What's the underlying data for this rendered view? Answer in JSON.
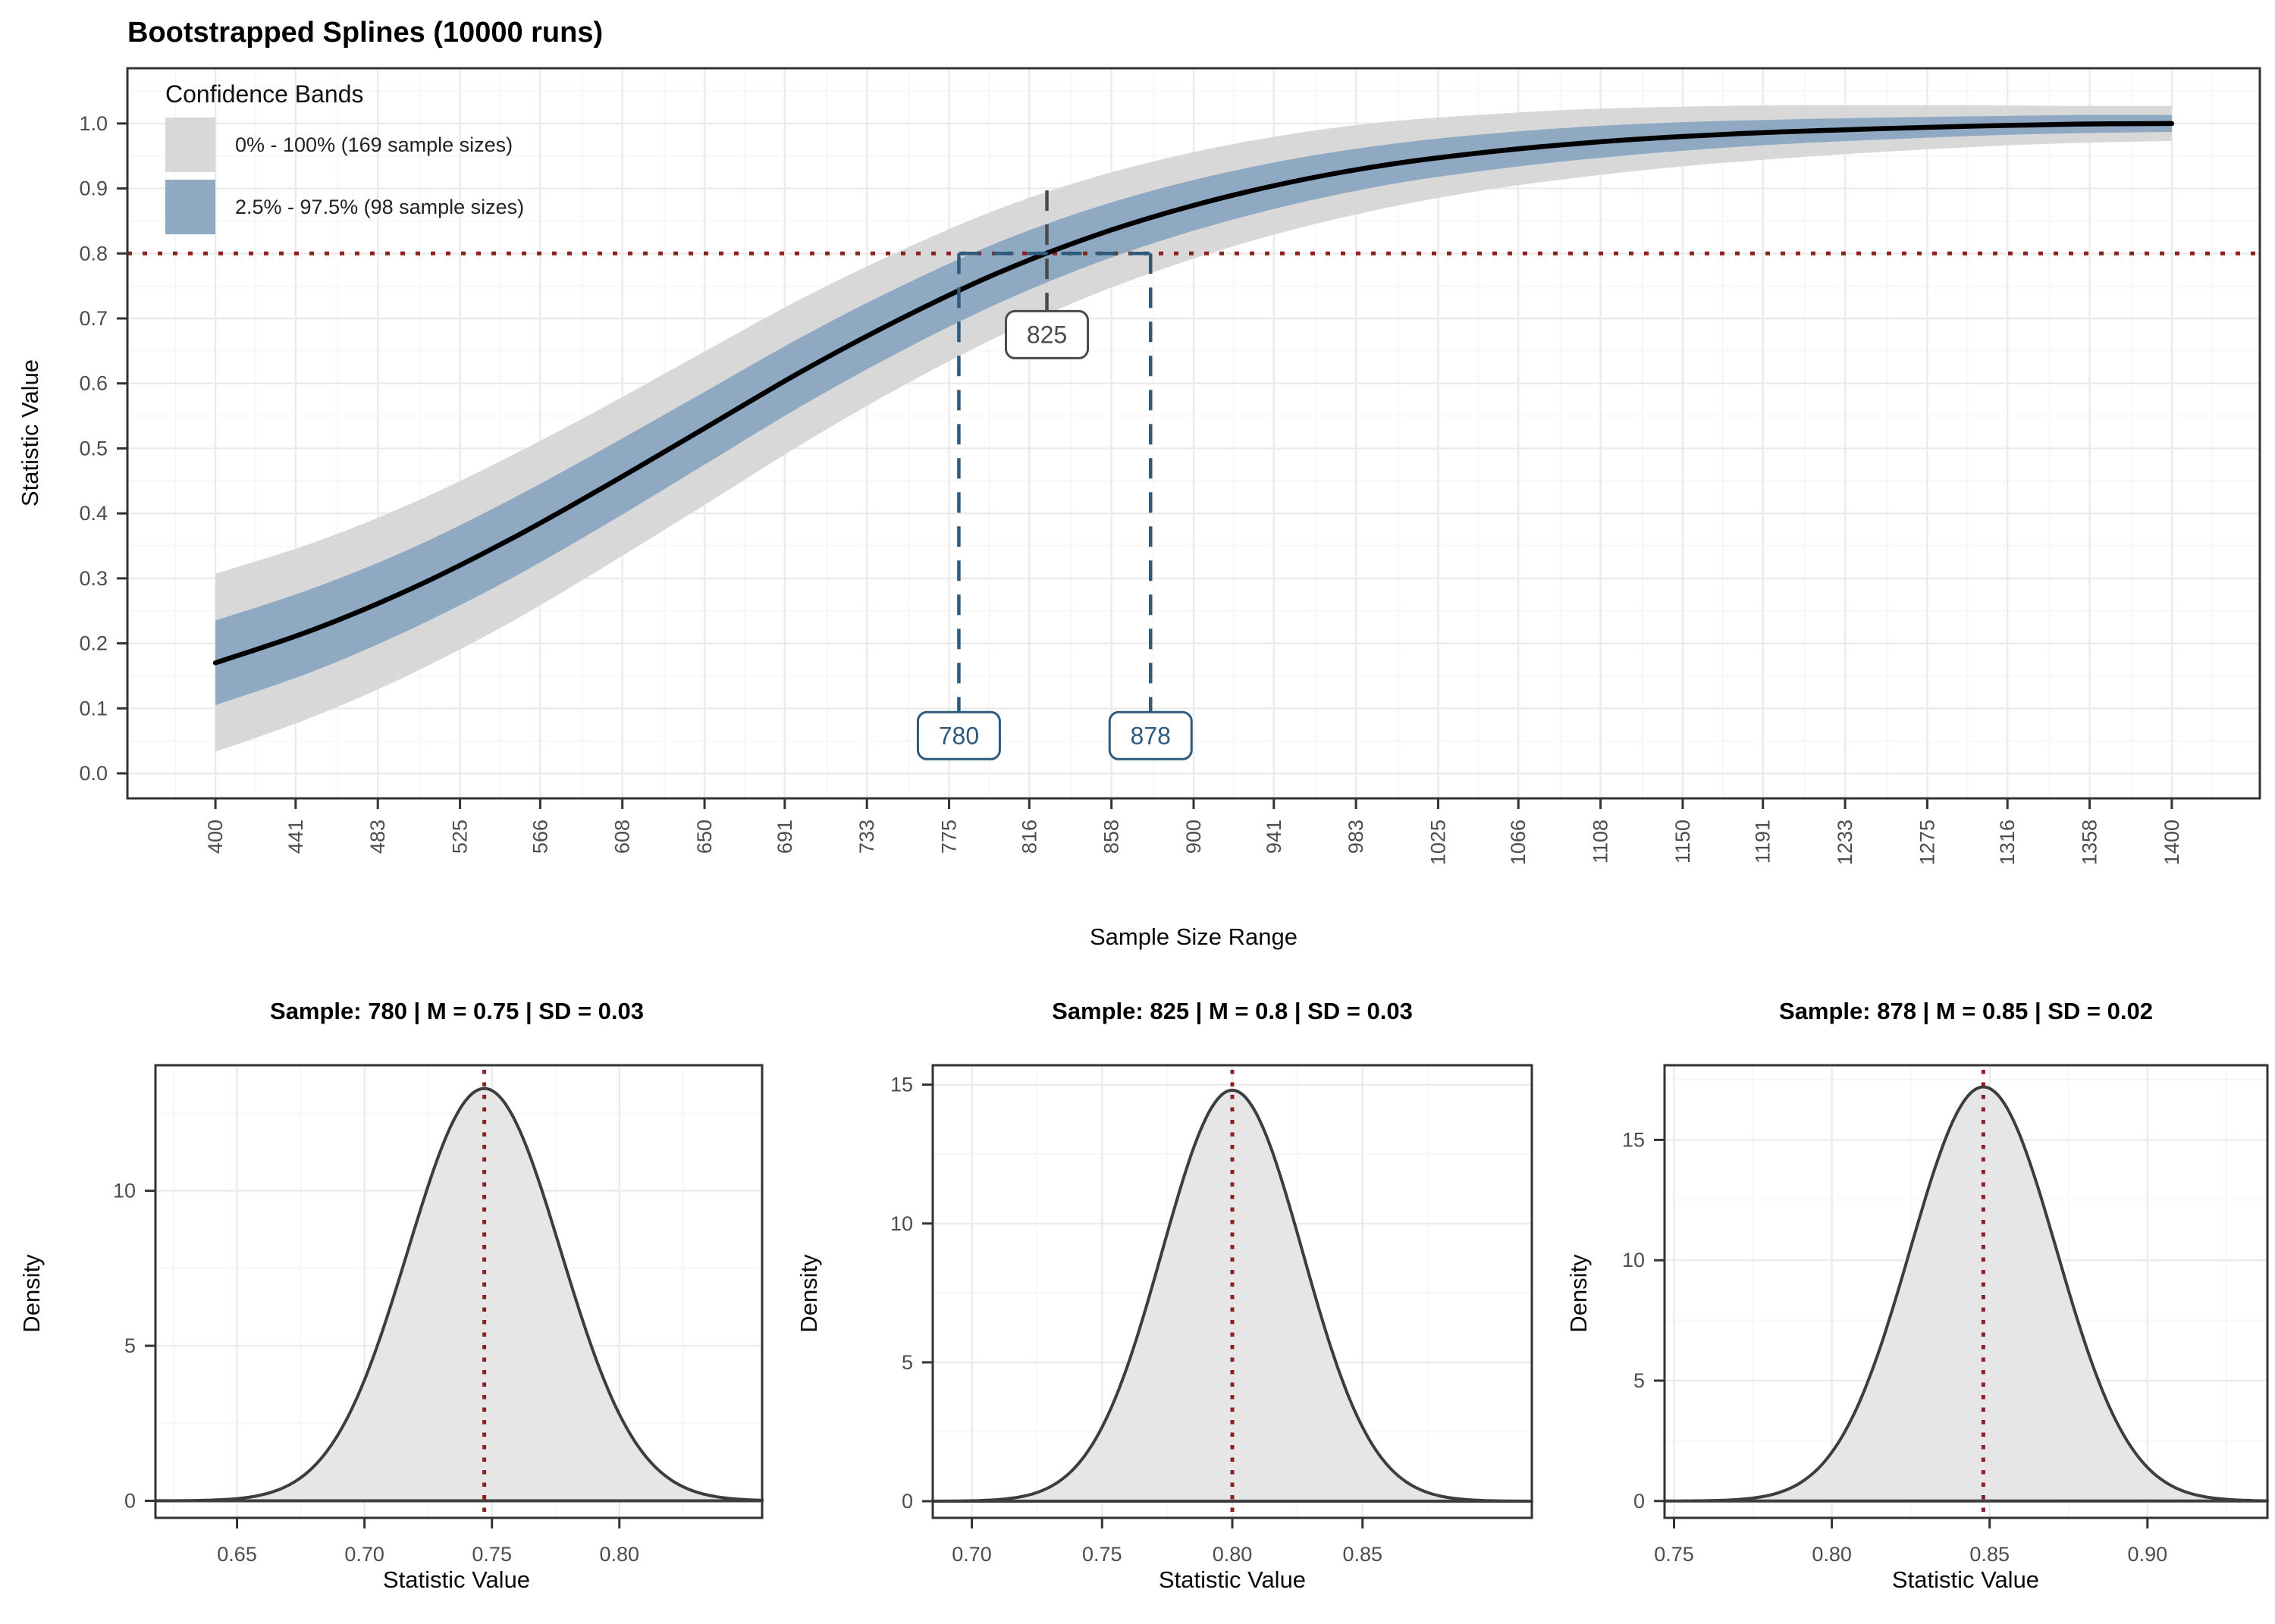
{
  "figure_title": "Bootstrapped Splines (10000 runs)",
  "chart_data": [
    {
      "type": "line",
      "title": "Bootstrapped Splines (10000 runs)",
      "xlabel": "Sample Size Range",
      "ylabel": "Statistic Value",
      "xlim": [
        355,
        1445
      ],
      "ylim": [
        -0.0385,
        1.085
      ],
      "x_ticks": [
        400,
        441,
        483,
        525,
        566,
        608,
        650,
        691,
        733,
        775,
        816,
        858,
        900,
        941,
        983,
        1025,
        1066,
        1108,
        1150,
        1191,
        1233,
        1275,
        1316,
        1358,
        1400
      ],
      "y_ticks": [
        0.0,
        0.1,
        0.2,
        0.3,
        0.4,
        0.5,
        0.6,
        0.7,
        0.8,
        0.9,
        1.0
      ],
      "grid": true,
      "colors": {
        "band_range": "#D8D8D8",
        "band_ci": "#8FA9C3",
        "spline": "#000000",
        "target_line": "#8B2020",
        "ci_annotation": "#2E5A7D",
        "mean_annotation": "#4A4A4A"
      },
      "legend": {
        "position": "top-left-inside",
        "title": "Confidence Bands",
        "items": [
          {
            "label": "0% - 100% (169 sample sizes)",
            "color": "#D8D8D8"
          },
          {
            "label": "2.5% - 97.5% (98 sample sizes)",
            "color": "#8FA9C3"
          }
        ]
      },
      "target_value": 0.8,
      "series": {
        "sample_size": [
          400,
          450,
          500,
          550,
          600,
          650,
          700,
          750,
          800,
          850,
          900,
          950,
          1000,
          1050,
          1100,
          1150,
          1200,
          1250,
          1300,
          1350,
          1400
        ],
        "mean": [
          0.17,
          0.221,
          0.284,
          0.359,
          0.443,
          0.531,
          0.619,
          0.699,
          0.77,
          0.828,
          0.874,
          0.91,
          0.937,
          0.956,
          0.97,
          0.98,
          0.987,
          0.992,
          0.996,
          0.999,
          1.0
        ],
        "ci95_low": [
          0.105,
          0.157,
          0.222,
          0.298,
          0.384,
          0.475,
          0.566,
          0.649,
          0.723,
          0.785,
          0.835,
          0.875,
          0.906,
          0.928,
          0.945,
          0.958,
          0.968,
          0.975,
          0.981,
          0.985,
          0.987
        ],
        "ci95_high": [
          0.235,
          0.285,
          0.346,
          0.42,
          0.502,
          0.587,
          0.672,
          0.749,
          0.817,
          0.871,
          0.913,
          0.945,
          0.968,
          0.984,
          0.995,
          1.002,
          1.006,
          1.009,
          1.011,
          1.013,
          1.013
        ],
        "range_low": [
          0.033,
          0.087,
          0.153,
          0.231,
          0.32,
          0.413,
          0.507,
          0.594,
          0.672,
          0.738,
          0.792,
          0.836,
          0.871,
          0.898,
          0.918,
          0.934,
          0.946,
          0.956,
          0.964,
          0.97,
          0.973
        ],
        "range_high": [
          0.307,
          0.355,
          0.415,
          0.487,
          0.566,
          0.649,
          0.731,
          0.804,
          0.868,
          0.918,
          0.956,
          0.984,
          1.003,
          1.014,
          1.022,
          1.026,
          1.028,
          1.028,
          1.028,
          1.027,
          1.027
        ]
      },
      "annotations": {
        "mean_crossing": {
          "x": 825,
          "label": "825",
          "line_top": 0.897,
          "line_bottom": 0.675
        },
        "ci_crossings": [
          {
            "x": 780,
            "label": "780"
          },
          {
            "x": 878,
            "label": "878"
          }
        ],
        "ci_label_y": 0.058
      }
    },
    {
      "type": "area",
      "title": "Sample: 780 | M = 0.75 | SD = 0.03",
      "xlabel": "Statistic Value",
      "ylabel": "Density",
      "mean": 0.747,
      "sd": 0.03,
      "peak_density": 13.3,
      "xlim": [
        0.618,
        0.856
      ],
      "ylim": [
        -0.55,
        14.05
      ],
      "x_ticks": [
        0.65,
        0.7,
        0.75,
        0.8
      ],
      "y_ticks": [
        0,
        5,
        10
      ],
      "colors": {
        "fill": "#E6E6E6",
        "stroke": "#3D3D3D",
        "mean_line": "#8B2020"
      }
    },
    {
      "type": "area",
      "title": "Sample: 825 | M = 0.8 | SD = 0.03",
      "xlabel": "Statistic Value",
      "ylabel": "Density",
      "mean": 0.8,
      "sd": 0.027,
      "peak_density": 14.8,
      "xlim": [
        0.685,
        0.915
      ],
      "ylim": [
        -0.6,
        15.7
      ],
      "x_ticks": [
        0.7,
        0.75,
        0.8,
        0.85
      ],
      "y_ticks": [
        0,
        5,
        10,
        15
      ],
      "colors": {
        "fill": "#E6E6E6",
        "stroke": "#3D3D3D",
        "mean_line": "#8B2020"
      }
    },
    {
      "type": "area",
      "title": "Sample: 878 | M = 0.85 | SD = 0.02",
      "xlabel": "Statistic Value",
      "ylabel": "Density",
      "mean": 0.848,
      "sd": 0.0232,
      "peak_density": 17.2,
      "xlim": [
        0.747,
        0.938
      ],
      "ylim": [
        -0.7,
        18.1
      ],
      "x_ticks": [
        0.75,
        0.8,
        0.85,
        0.9
      ],
      "y_ticks": [
        0,
        5,
        10,
        15
      ],
      "colors": {
        "fill": "#E6E6E6",
        "stroke": "#3D3D3D",
        "mean_line": "#8B2020"
      }
    }
  ],
  "theme": {
    "panel_border": "#333333",
    "grid_major": "#EBEBEB",
    "grid_minor": "#F6F6F6",
    "tick_mark": "#333333",
    "tick_text": "#4D4D4D"
  }
}
